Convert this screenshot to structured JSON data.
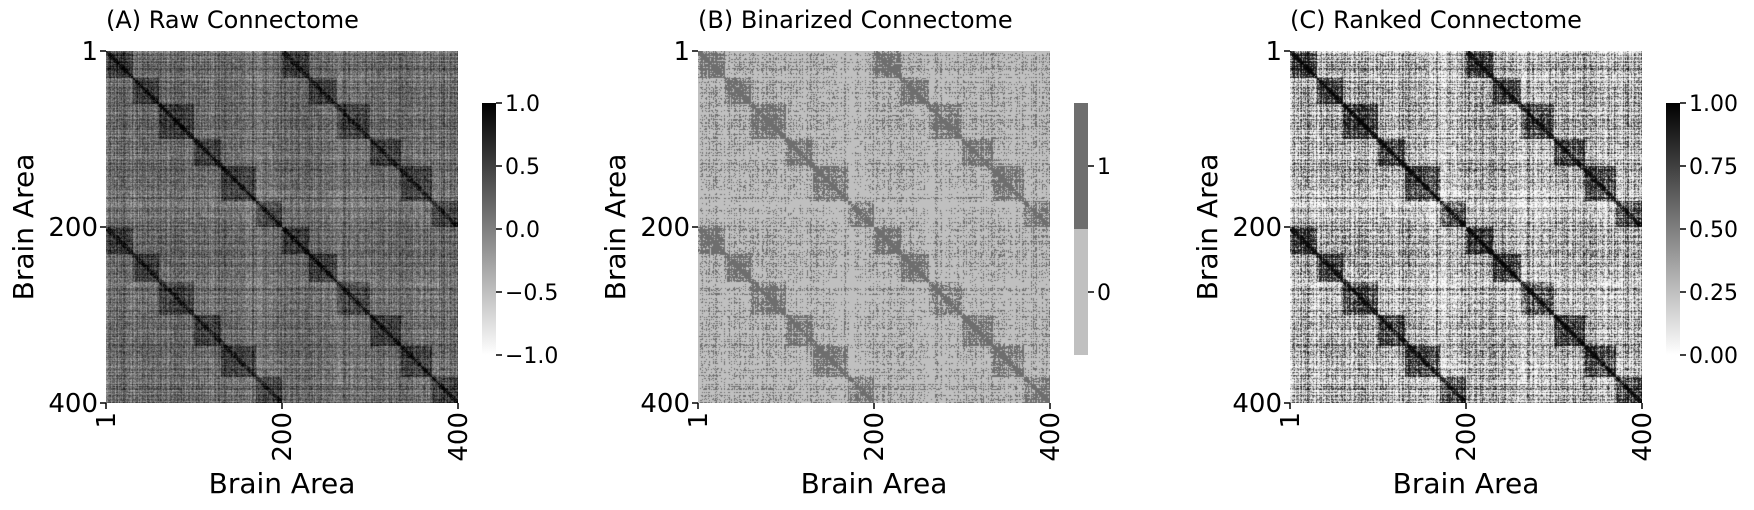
{
  "chart_data": [
    {
      "type": "heatmap",
      "title": "(A) Raw Connectome",
      "xlabel": "Brain Area",
      "ylabel": "Brain Area",
      "size": 400,
      "x_ticks": [
        "1",
        "200",
        "400"
      ],
      "y_ticks": [
        "1",
        "200",
        "400"
      ],
      "colorbar": {
        "kind": "continuous",
        "range": [
          -1.0,
          1.0
        ],
        "ticks": [
          {
            "value": 1.0,
            "label": "1.0"
          },
          {
            "value": 0.5,
            "label": "0.5"
          },
          {
            "value": 0.0,
            "label": "0.0"
          },
          {
            "value": -0.5,
            "label": "−0.5"
          },
          {
            "value": -1.0,
            "label": "−1.0"
          }
        ],
        "low_color": "#ffffff",
        "high_color": "#000000"
      },
      "mode": "raw"
    },
    {
      "type": "heatmap",
      "title": "(B) Binarized Connectome",
      "xlabel": "Brain Area",
      "ylabel": "Brain Area",
      "size": 400,
      "x_ticks": [
        "1",
        "200",
        "400"
      ],
      "y_ticks": [
        "1",
        "200",
        "400"
      ],
      "colorbar": {
        "kind": "discrete",
        "levels": [
          {
            "value": 1,
            "label": "1",
            "color": "#6e6e6e"
          },
          {
            "value": 0,
            "label": "0",
            "color": "#c0c0c0"
          }
        ]
      },
      "mode": "binary"
    },
    {
      "type": "heatmap",
      "title": "(C) Ranked Connectome",
      "xlabel": "Brain Area",
      "ylabel": "Brain Area",
      "size": 400,
      "x_ticks": [
        "1",
        "200",
        "400"
      ],
      "y_ticks": [
        "1",
        "200",
        "400"
      ],
      "colorbar": {
        "kind": "continuous",
        "range": [
          0.0,
          1.0
        ],
        "ticks": [
          {
            "value": 1.0,
            "label": "1.00"
          },
          {
            "value": 0.75,
            "label": "0.75"
          },
          {
            "value": 0.5,
            "label": "0.50"
          },
          {
            "value": 0.25,
            "label": "0.25"
          },
          {
            "value": 0.0,
            "label": "0.00"
          }
        ],
        "low_color": "#ffffff",
        "high_color": "#000000"
      },
      "mode": "ranked"
    }
  ]
}
